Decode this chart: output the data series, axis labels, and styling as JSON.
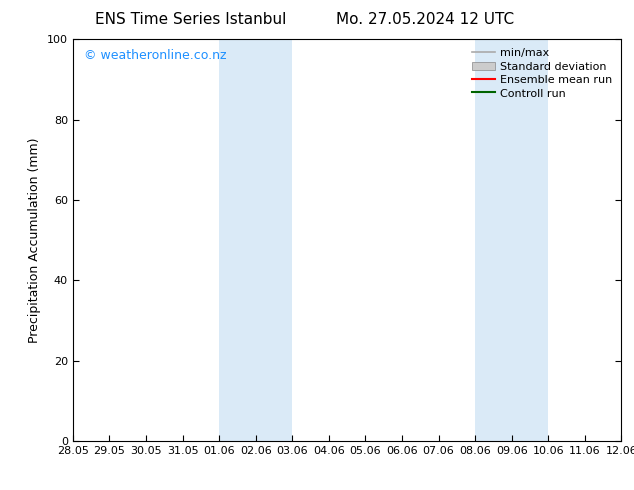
{
  "title_left": "ENS Time Series Istanbul",
  "title_right": "Mo. 27.05.2024 12 UTC",
  "ylabel": "Precipitation Accumulation (mm)",
  "ylim": [
    0,
    100
  ],
  "yticks": [
    0,
    20,
    40,
    60,
    80,
    100
  ],
  "x_tick_labels": [
    "28.05",
    "29.05",
    "30.05",
    "31.05",
    "01.06",
    "02.06",
    "03.06",
    "04.06",
    "05.06",
    "06.06",
    "07.06",
    "08.06",
    "09.06",
    "10.06",
    "11.06",
    "12.06"
  ],
  "shaded_color": "#daeaf7",
  "watermark_text": "© weatheronline.co.nz",
  "watermark_color": "#1e90ff",
  "background_color": "#ffffff",
  "legend_entries": [
    {
      "label": "min/max",
      "color": "#aaaaaa",
      "style": "minmax"
    },
    {
      "label": "Standard deviation",
      "color": "#cccccc",
      "style": "stddev"
    },
    {
      "label": "Ensemble mean run",
      "color": "#ff0000",
      "style": "line"
    },
    {
      "label": "Controll run",
      "color": "#006400",
      "style": "line"
    }
  ],
  "title_fontsize": 11,
  "tick_fontsize": 8,
  "ylabel_fontsize": 9,
  "watermark_fontsize": 9,
  "legend_fontsize": 8
}
